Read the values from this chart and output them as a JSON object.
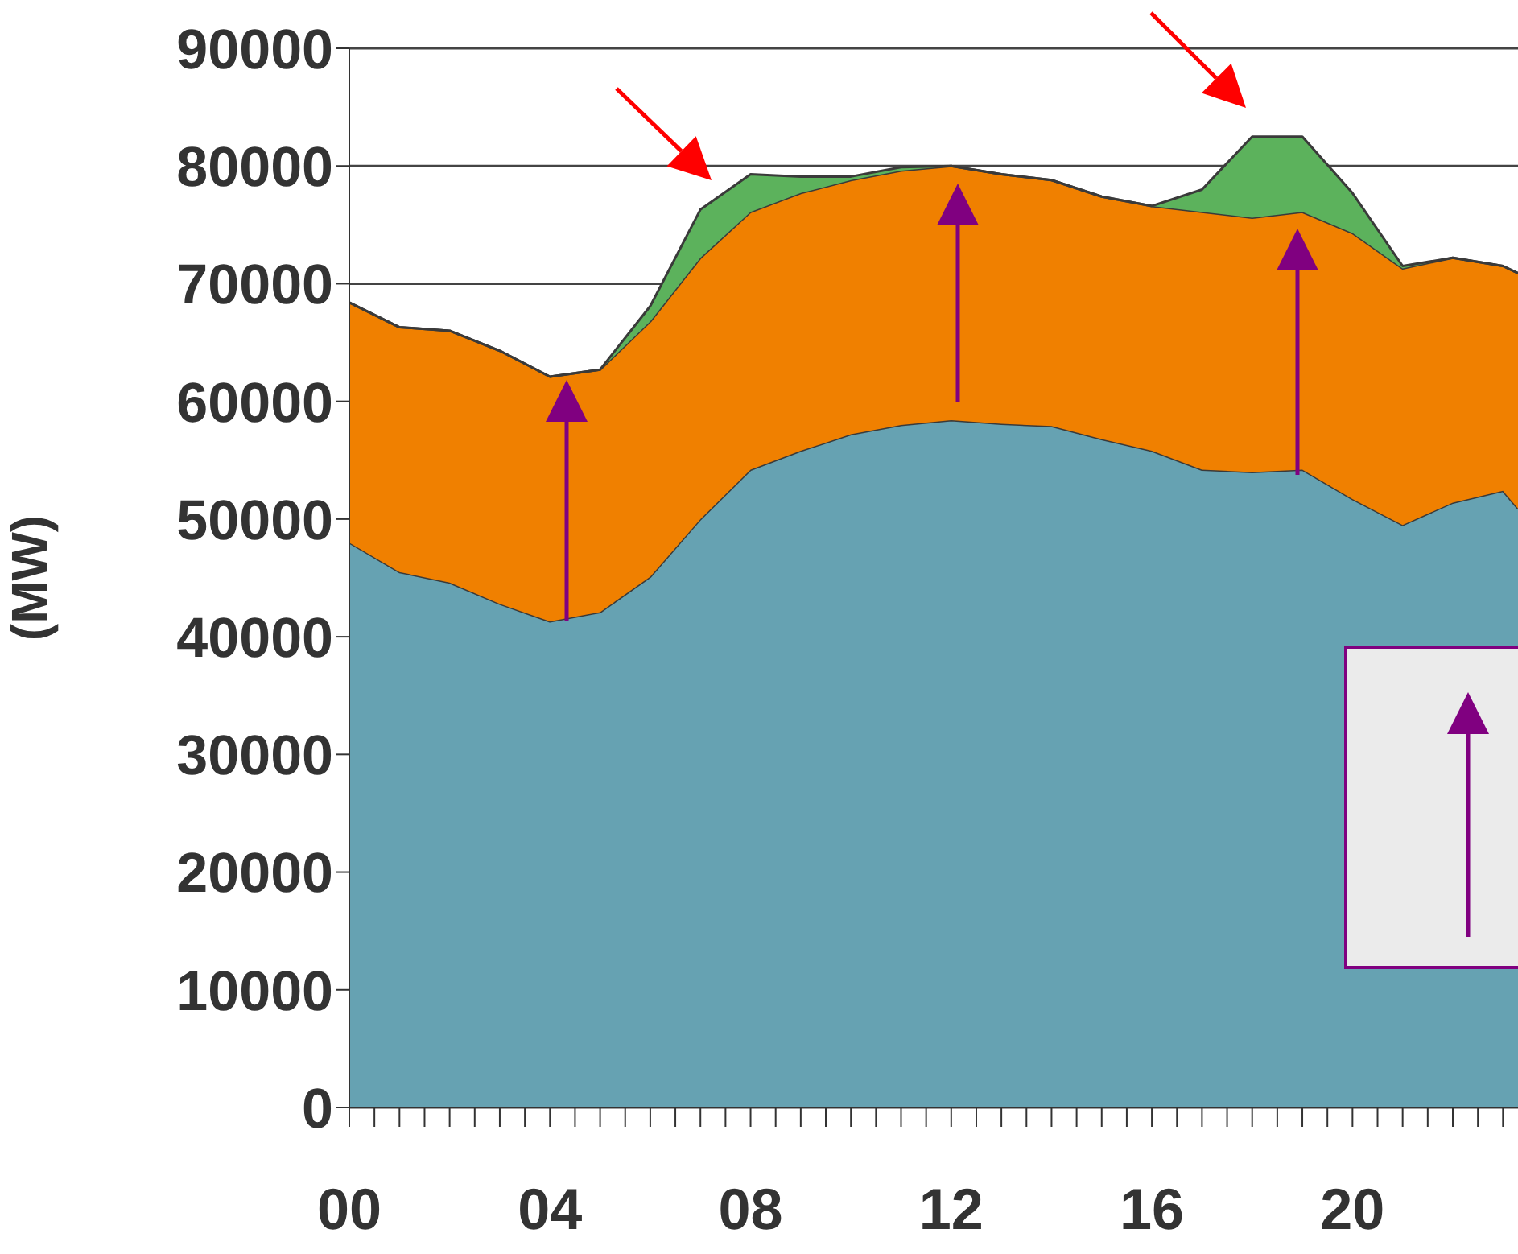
{
  "chart_data": {
    "type": "area",
    "stacked": true,
    "ylabel": "(MW)",
    "x": [
      0,
      1,
      2,
      3,
      4,
      5,
      6,
      7,
      8,
      9,
      10,
      11,
      12,
      13,
      14,
      15,
      16,
      17,
      18,
      19,
      20,
      21,
      22,
      23,
      23.3
    ],
    "series": [
      {
        "color": "#66a2b2",
        "values": [
          48000,
          45500,
          44600,
          42800,
          41300,
          42100,
          45100,
          50000,
          54200,
          55800,
          57200,
          58000,
          58400,
          58100,
          57900,
          56800,
          55800,
          54200,
          54000,
          54200,
          51700,
          49500,
          51400,
          52400,
          50900
        ]
      },
      {
        "color": "#f08000",
        "values": [
          20400,
          20800,
          21400,
          21500,
          20800,
          20600,
          21700,
          22200,
          21900,
          21900,
          21600,
          21600,
          21600,
          21200,
          20900,
          20600,
          20800,
          21900,
          21600,
          21900,
          22600,
          21800,
          20800,
          19100,
          20000
        ]
      },
      {
        "color": "#5cb25c",
        "values": [
          0,
          0,
          0,
          0,
          0,
          0,
          1300,
          4100,
          3200,
          1400,
          300,
          300,
          0,
          0,
          0,
          0,
          0,
          1900,
          6900,
          6400,
          3400,
          200,
          0,
          0,
          0
        ]
      }
    ],
    "xlim": [
      0,
      23.3
    ],
    "xticks": [
      {
        "value": 0,
        "label": "00"
      },
      {
        "value": 0.5,
        "label": null
      },
      {
        "value": 1,
        "label": null
      },
      {
        "value": 1.5,
        "label": null
      },
      {
        "value": 2,
        "label": null
      },
      {
        "value": 2.5,
        "label": null
      },
      {
        "value": 3,
        "label": null
      },
      {
        "value": 3.5,
        "label": null
      },
      {
        "value": 4,
        "label": "04"
      },
      {
        "value": 4.5,
        "label": null
      },
      {
        "value": 5,
        "label": null
      },
      {
        "value": 5.5,
        "label": null
      },
      {
        "value": 6,
        "label": null
      },
      {
        "value": 6.5,
        "label": null
      },
      {
        "value": 7,
        "label": null
      },
      {
        "value": 7.5,
        "label": null
      },
      {
        "value": 8,
        "label": "08"
      },
      {
        "value": 8.5,
        "label": null
      },
      {
        "value": 9,
        "label": null
      },
      {
        "value": 9.5,
        "label": null
      },
      {
        "value": 10,
        "label": null
      },
      {
        "value": 10.5,
        "label": null
      },
      {
        "value": 11,
        "label": null
      },
      {
        "value": 11.5,
        "label": null
      },
      {
        "value": 12,
        "label": "12"
      },
      {
        "value": 12.5,
        "label": null
      },
      {
        "value": 13,
        "label": null
      },
      {
        "value": 13.5,
        "label": null
      },
      {
        "value": 14,
        "label": null
      },
      {
        "value": 14.5,
        "label": null
      },
      {
        "value": 15,
        "label": null
      },
      {
        "value": 15.5,
        "label": null
      },
      {
        "value": 16,
        "label": "16"
      },
      {
        "value": 16.5,
        "label": null
      },
      {
        "value": 17,
        "label": null
      },
      {
        "value": 17.5,
        "label": null
      },
      {
        "value": 18,
        "label": null
      },
      {
        "value": 18.5,
        "label": null
      },
      {
        "value": 19,
        "label": null
      },
      {
        "value": 19.5,
        "label": null
      },
      {
        "value": 20,
        "label": "20"
      },
      {
        "value": 20.5,
        "label": null
      },
      {
        "value": 21,
        "label": null
      },
      {
        "value": 21.5,
        "label": null
      },
      {
        "value": 22,
        "label": null
      },
      {
        "value": 22.5,
        "label": null
      },
      {
        "value": 23,
        "label": null
      }
    ],
    "ylim": [
      0,
      90000
    ],
    "yticks": [
      0,
      10000,
      20000,
      30000,
      40000,
      50000,
      60000,
      70000,
      80000,
      90000
    ],
    "grid": "y"
  }
}
